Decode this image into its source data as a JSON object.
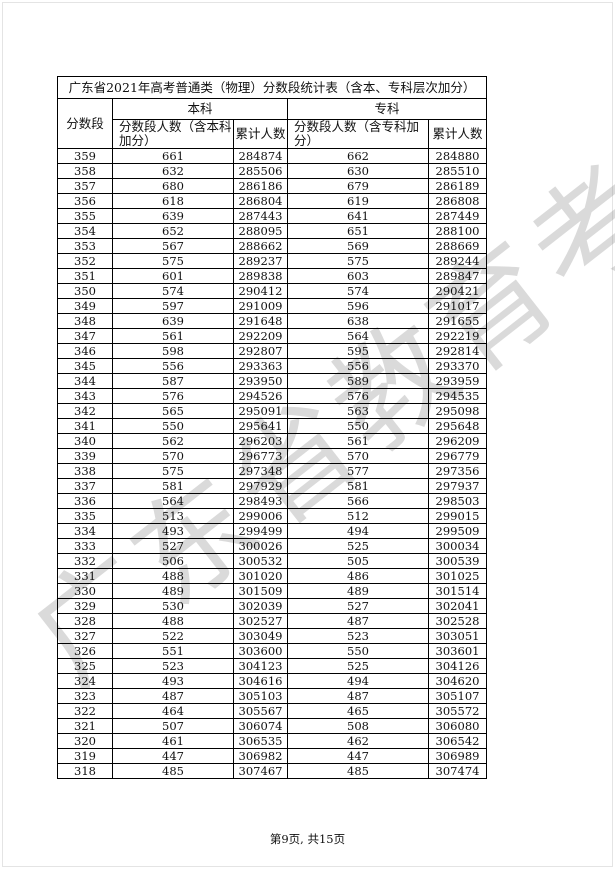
{
  "title": "广东省2021年高考普通类（物理）分数段统计表（含本、专科层次加分）",
  "headers": {
    "score_band": "分数段",
    "undergrad": "本科",
    "junior": "专科",
    "undergrad_count": "分数段人数（含本科加分）",
    "undergrad_cum": "累计人数",
    "junior_count": "分数段人数（含专科加分）",
    "junior_cum": "累计人数"
  },
  "rows": [
    [
      "359",
      "661",
      "284874",
      "662",
      "284880"
    ],
    [
      "358",
      "632",
      "285506",
      "630",
      "285510"
    ],
    [
      "357",
      "680",
      "286186",
      "679",
      "286189"
    ],
    [
      "356",
      "618",
      "286804",
      "619",
      "286808"
    ],
    [
      "355",
      "639",
      "287443",
      "641",
      "287449"
    ],
    [
      "354",
      "652",
      "288095",
      "651",
      "288100"
    ],
    [
      "353",
      "567",
      "288662",
      "569",
      "288669"
    ],
    [
      "352",
      "575",
      "289237",
      "575",
      "289244"
    ],
    [
      "351",
      "601",
      "289838",
      "603",
      "289847"
    ],
    [
      "350",
      "574",
      "290412",
      "574",
      "290421"
    ],
    [
      "349",
      "597",
      "291009",
      "596",
      "291017"
    ],
    [
      "348",
      "639",
      "291648",
      "638",
      "291655"
    ],
    [
      "347",
      "561",
      "292209",
      "564",
      "292219"
    ],
    [
      "346",
      "598",
      "292807",
      "595",
      "292814"
    ],
    [
      "345",
      "556",
      "293363",
      "556",
      "293370"
    ],
    [
      "344",
      "587",
      "293950",
      "589",
      "293959"
    ],
    [
      "343",
      "576",
      "294526",
      "576",
      "294535"
    ],
    [
      "342",
      "565",
      "295091",
      "563",
      "295098"
    ],
    [
      "341",
      "550",
      "295641",
      "550",
      "295648"
    ],
    [
      "340",
      "562",
      "296203",
      "561",
      "296209"
    ],
    [
      "339",
      "570",
      "296773",
      "570",
      "296779"
    ],
    [
      "338",
      "575",
      "297348",
      "577",
      "297356"
    ],
    [
      "337",
      "581",
      "297929",
      "581",
      "297937"
    ],
    [
      "336",
      "564",
      "298493",
      "566",
      "298503"
    ],
    [
      "335",
      "513",
      "299006",
      "512",
      "299015"
    ],
    [
      "334",
      "493",
      "299499",
      "494",
      "299509"
    ],
    [
      "333",
      "527",
      "300026",
      "525",
      "300034"
    ],
    [
      "332",
      "506",
      "300532",
      "505",
      "300539"
    ],
    [
      "331",
      "488",
      "301020",
      "486",
      "301025"
    ],
    [
      "330",
      "489",
      "301509",
      "489",
      "301514"
    ],
    [
      "329",
      "530",
      "302039",
      "527",
      "302041"
    ],
    [
      "328",
      "488",
      "302527",
      "487",
      "302528"
    ],
    [
      "327",
      "522",
      "303049",
      "523",
      "303051"
    ],
    [
      "326",
      "551",
      "303600",
      "550",
      "303601"
    ],
    [
      "325",
      "523",
      "304123",
      "525",
      "304126"
    ],
    [
      "324",
      "493",
      "304616",
      "494",
      "304620"
    ],
    [
      "323",
      "487",
      "305103",
      "487",
      "305107"
    ],
    [
      "322",
      "464",
      "305567",
      "465",
      "305572"
    ],
    [
      "321",
      "507",
      "306074",
      "508",
      "306080"
    ],
    [
      "320",
      "461",
      "306535",
      "462",
      "306542"
    ],
    [
      "319",
      "447",
      "306982",
      "447",
      "306989"
    ],
    [
      "318",
      "485",
      "307467",
      "485",
      "307474"
    ]
  ],
  "footer": "第9页, 共15页",
  "watermark": "广东省教育考试院"
}
